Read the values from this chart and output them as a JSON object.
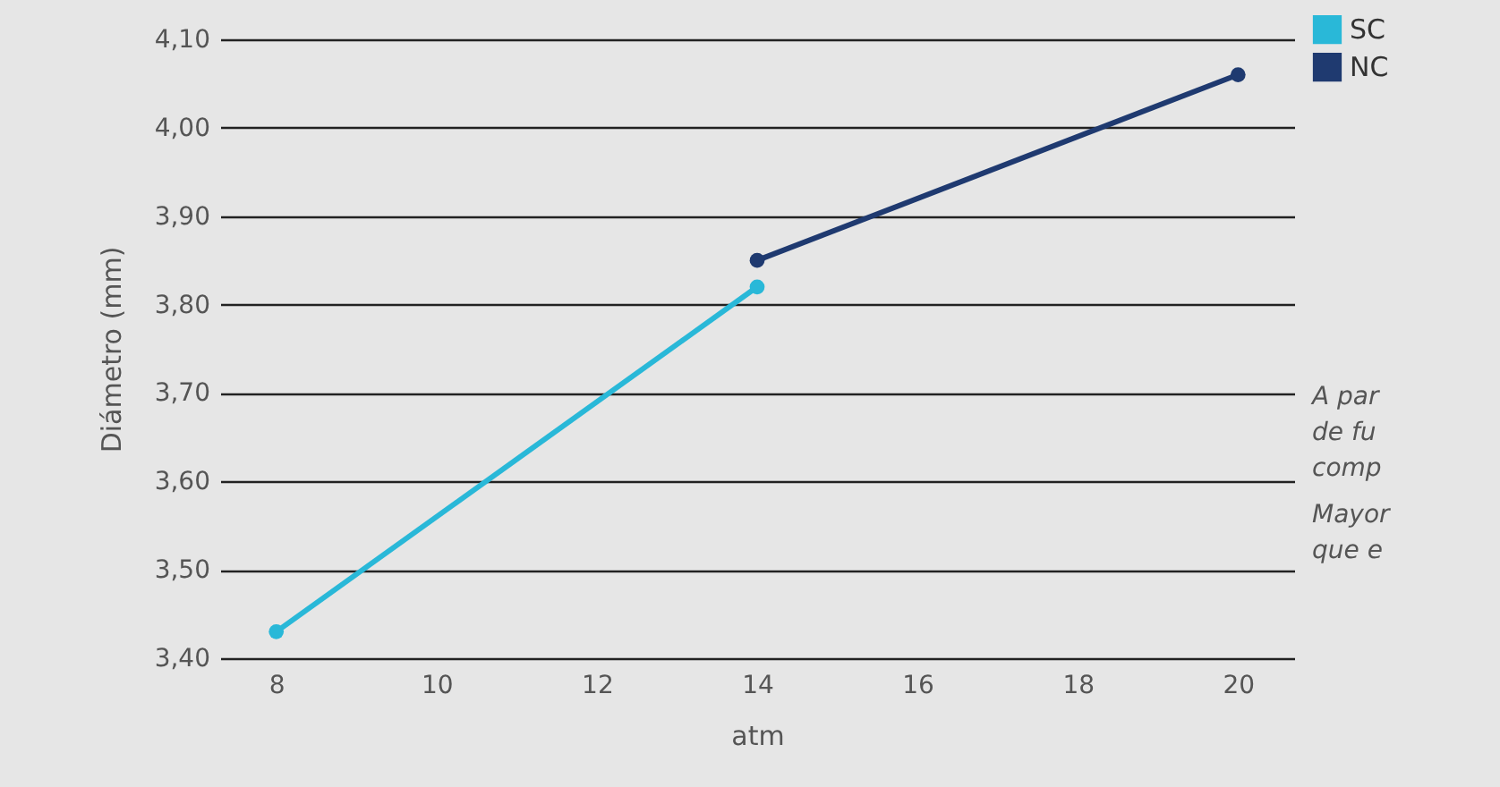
{
  "chart_data": {
    "type": "line",
    "xlabel": "atm",
    "ylabel": "Diámetro (mm)",
    "xlim": [
      7.3,
      20.7
    ],
    "xticks": [
      8,
      10,
      12,
      14,
      16,
      18,
      20
    ],
    "ylim": [
      3.4,
      4.1
    ],
    "yticks": [
      {
        "value": 3.4,
        "label": "3,40"
      },
      {
        "value": 3.5,
        "label": "3,50"
      },
      {
        "value": 3.6,
        "label": "3,60"
      },
      {
        "value": 3.7,
        "label": "3,70"
      },
      {
        "value": 3.8,
        "label": "3,80"
      },
      {
        "value": 3.9,
        "label": "3,90"
      },
      {
        "value": 4.0,
        "label": "4,00"
      },
      {
        "value": 4.1,
        "label": "4,10"
      }
    ],
    "grid": "y",
    "legend": "top right",
    "marker": "circle",
    "series": [
      {
        "name": "SC",
        "color": "#29b8d8",
        "x": [
          8,
          14
        ],
        "values": [
          3.43,
          3.82
        ]
      },
      {
        "name": "NC",
        "color": "#1f3a70",
        "x": [
          14,
          20
        ],
        "values": [
          3.85,
          4.06
        ]
      }
    ],
    "annotations": [
      "A par\nde fu\ncomp",
      "Mayor\nque e"
    ]
  }
}
